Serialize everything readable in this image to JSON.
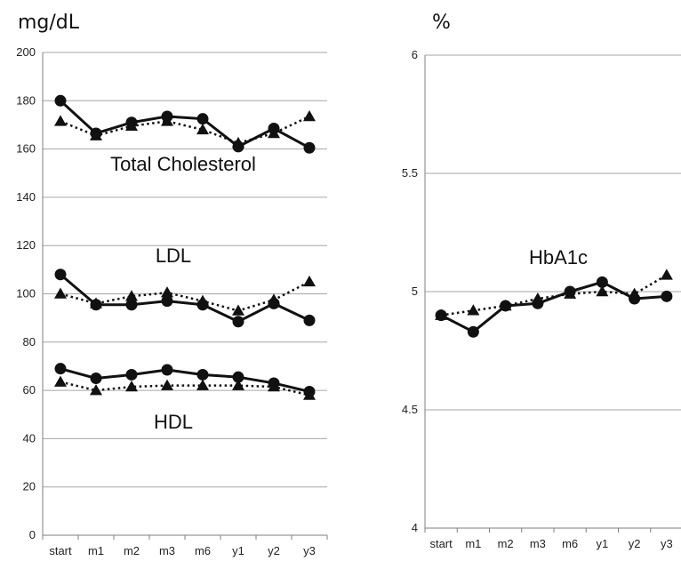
{
  "chart_data": [
    {
      "type": "line",
      "unit_label": "mg/dL",
      "categories": [
        "start",
        "m1",
        "m2",
        "m3",
        "m6",
        "y1",
        "y2",
        "y3"
      ],
      "ylim": [
        0,
        200
      ],
      "yticks": [
        0,
        20,
        40,
        60,
        80,
        100,
        120,
        140,
        160,
        180,
        200
      ],
      "grid": true,
      "groups": [
        {
          "label": "Total Cholesterol",
          "series": [
            {
              "style": "solid-circle",
              "values": [
                180,
                166.5,
                171,
                173.5,
                172.5,
                161,
                168.5,
                160.5
              ]
            },
            {
              "style": "dotted-triangle",
              "values": [
                171.5,
                165.5,
                169.5,
                171.5,
                168,
                162.5,
                166.5,
                173.5
              ]
            }
          ]
        },
        {
          "label": "LDL",
          "series": [
            {
              "style": "solid-circle",
              "values": [
                108,
                95.5,
                95.5,
                97,
                95.5,
                88.5,
                96,
                89
              ]
            },
            {
              "style": "dotted-triangle",
              "values": [
                100,
                96,
                99,
                100.5,
                97,
                93,
                97.5,
                105
              ]
            }
          ]
        },
        {
          "label": "HDL",
          "series": [
            {
              "style": "solid-circle",
              "values": [
                69,
                65,
                66.5,
                68.5,
                66.5,
                65.5,
                63,
                59.5
              ]
            },
            {
              "style": "dotted-triangle",
              "values": [
                63.5,
                60,
                61.5,
                62,
                62,
                62,
                61.5,
                58
              ]
            }
          ]
        }
      ]
    },
    {
      "type": "line",
      "unit_label": "%",
      "categories": [
        "start",
        "m1",
        "m2",
        "m3",
        "m6",
        "y1",
        "y2",
        "y3"
      ],
      "ylim": [
        4,
        6
      ],
      "yticks": [
        4,
        4.5,
        5,
        5.5,
        6
      ],
      "grid": true,
      "groups": [
        {
          "label": "HbA1c",
          "series": [
            {
              "style": "solid-circle",
              "values": [
                4.9,
                4.83,
                4.94,
                4.95,
                5.0,
                5.04,
                4.97,
                4.98
              ]
            },
            {
              "style": "dotted-triangle",
              "values": [
                4.9,
                4.92,
                4.94,
                4.97,
                4.99,
                5.0,
                4.99,
                5.07
              ]
            }
          ]
        }
      ]
    }
  ]
}
